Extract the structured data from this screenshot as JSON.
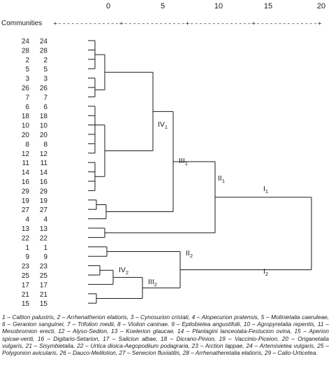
{
  "axis": {
    "label": "Communities",
    "ticks": [
      "0",
      "5",
      "10",
      "15",
      "20"
    ],
    "axis_text": "+--------------+--------------+--------------+--------------+"
  },
  "rows": [
    {
      "a": "24",
      "b": "24"
    },
    {
      "a": "28",
      "b": "28"
    },
    {
      "a": "2",
      "b": "2"
    },
    {
      "a": "5",
      "b": "5"
    },
    {
      "a": "3",
      "b": "3"
    },
    {
      "a": "26",
      "b": "26"
    },
    {
      "a": "7",
      "b": "7"
    },
    {
      "a": "6",
      "b": "6"
    },
    {
      "a": "18",
      "b": "18"
    },
    {
      "a": "10",
      "b": "10"
    },
    {
      "a": "20",
      "b": "20"
    },
    {
      "a": "8",
      "b": "8"
    },
    {
      "a": "12",
      "b": "12"
    },
    {
      "a": "11",
      "b": "11"
    },
    {
      "a": "14",
      "b": "14"
    },
    {
      "a": "16",
      "b": "16"
    },
    {
      "a": "29",
      "b": "29"
    },
    {
      "a": "19",
      "b": "19"
    },
    {
      "a": "27",
      "b": "27"
    },
    {
      "a": "4",
      "b": "4"
    },
    {
      "a": "13",
      "b": "13"
    },
    {
      "a": "22",
      "b": "22"
    },
    {
      "a": "1",
      "b": "1"
    },
    {
      "a": "9",
      "b": "9"
    },
    {
      "a": "23",
      "b": "23"
    },
    {
      "a": "25",
      "b": "25"
    },
    {
      "a": "17",
      "b": "17"
    },
    {
      "a": "21",
      "b": "21"
    },
    {
      "a": "15",
      "b": "15"
    }
  ],
  "clusters": {
    "IV1": {
      "base": "IV",
      "sub": "1"
    },
    "III1": {
      "base": "III",
      "sub": "1"
    },
    "II1": {
      "base": "II",
      "sub": "1"
    },
    "I1": {
      "base": "I",
      "sub": "1"
    },
    "II2": {
      "base": "II",
      "sub": "2"
    },
    "IV2": {
      "base": "IV",
      "sub": "2"
    },
    "III2": {
      "base": "III",
      "sub": "2"
    },
    "I2": {
      "base": "I",
      "sub": "2"
    }
  },
  "legend": "1 – Caltion palustris, 2 – Arrhenatherion elatioris, 3 – Cynosurion cristati, 4 – Alopecurion pratensis, 5 – Molinietalia caeruleae, 6 – Geranion sanguinei, 7 – Trifolion medii, 8 – Violion caninae, 9 – Epilobietea angustifolii, 10 – Agropyretalia repentis, 11 – Mesobromion erecti, 12 – Alyso-Sedion, 13 – Koelerion glaucae, 14 – Plantagini lanceolata-Festucion ovina, 15 – Aperion spicae-venti, 16 – Digitario-Setarion, 17 – Salicion albae, 18 – Dicrano-Pinion, 19 – Vaccinio-Piceion, 20 – Origanetalia vulgaris, 21 – Sisymbietalia, 22 – Urtica dioica-Aegopodiium podagraria, 23 – Arction lappae, 24 – Artemisietea vulgaris, 25 – Polygonion avicularis, 26 – Dauco-Melilotion, 27 – Senecion fluviatilis, 28 – Arrhenatheretalia elatioris, 29 – Calio-Urticetea."
}
